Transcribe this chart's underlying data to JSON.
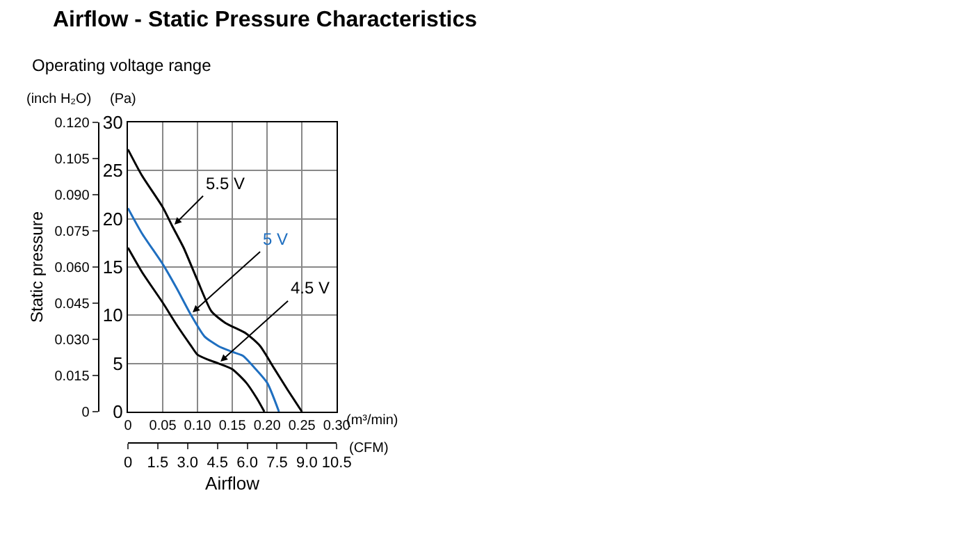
{
  "chart_data": {
    "type": "line",
    "title": "Airflow - Static Pressure Characteristics",
    "subtitle": "Operating voltage range",
    "x2label": "Airflow",
    "y2label": "Static pressure",
    "annotations": [
      "(inch H₂O)",
      "(Pa)",
      "(m³/min)",
      "(CFM)"
    ],
    "series": [
      {
        "name": "5.5 V",
        "color": "#000000",
        "x": [
          0,
          0.02,
          0.05,
          0.064,
          0.08,
          0.1,
          0.12,
          0.14,
          0.17,
          0.19,
          0.21,
          0.23,
          0.25
        ],
        "values": [
          27.2,
          24.5,
          21.2,
          19.2,
          17,
          13.6,
          10.4,
          9.2,
          8.1,
          6.8,
          4.5,
          2.2,
          0
        ]
      },
      {
        "name": "5 V",
        "color": "#1f6fc0",
        "x": [
          0,
          0.02,
          0.05,
          0.07,
          0.09,
          0.11,
          0.13,
          0.15,
          0.165,
          0.18,
          0.2,
          0.217
        ],
        "values": [
          21.1,
          18.5,
          15.3,
          12.8,
          10.1,
          7.8,
          6.8,
          6.2,
          5.8,
          4.7,
          3.0,
          0
        ]
      },
      {
        "name": "4.5 V",
        "color": "#000000",
        "x": [
          0,
          0.02,
          0.05,
          0.07,
          0.09,
          0.1,
          0.115,
          0.13,
          0.15,
          0.17,
          0.185,
          0.196
        ],
        "values": [
          17,
          14.5,
          11.3,
          9,
          6.9,
          5.9,
          5.4,
          5.0,
          4.4,
          3.0,
          1.4,
          0
        ]
      }
    ],
    "xlim": [
      0,
      0.3
    ],
    "xticks": [
      0,
      0.05,
      {
        "value": 0.1,
        "label": "0.10"
      },
      0.15,
      {
        "value": 0.2,
        "label": "0.20"
      },
      0.25,
      {
        "value": 0.3,
        "label": "0.30"
      }
    ],
    "ylim": [
      0,
      30
    ],
    "yticks": [
      0,
      5,
      10,
      15,
      20,
      25,
      30
    ],
    "y2lim": [
      0,
      0.12
    ],
    "y2ticks": [
      0,
      {
        "value": 0.015,
        "label": "0.015"
      },
      {
        "value": 0.03,
        "label": "0.030"
      },
      {
        "value": 0.045,
        "label": "0.045"
      },
      {
        "value": 0.06,
        "label": "0.060"
      },
      {
        "value": 0.075,
        "label": "0.075"
      },
      {
        "value": 0.09,
        "label": "0.090"
      },
      {
        "value": 0.105,
        "label": "0.105"
      },
      {
        "value": 0.12,
        "label": "0.120"
      }
    ],
    "x2lim": [
      0,
      10.5
    ],
    "x2ticks": [
      0,
      1.5,
      {
        "value": 3,
        "label": "3.0"
      },
      4.5,
      {
        "value": 6,
        "label": "6.0"
      },
      7.5,
      {
        "value": 9,
        "label": "9.0"
      },
      10.5
    ],
    "grid": true,
    "legend": false,
    "marker": "none",
    "line_style": "solid"
  }
}
